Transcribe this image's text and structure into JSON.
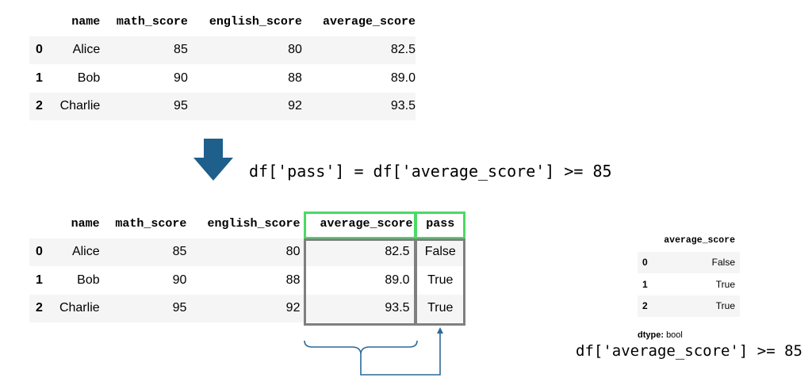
{
  "top_table": {
    "columns": [
      "name",
      "math_score",
      "english_score",
      "average_score"
    ],
    "rows": [
      {
        "index": "0",
        "name": "Alice",
        "math_score": "85",
        "english_score": "80",
        "average_score": "82.5"
      },
      {
        "index": "1",
        "name": "Bob",
        "math_score": "90",
        "english_score": "88",
        "average_score": "89.0"
      },
      {
        "index": "2",
        "name": "Charlie",
        "math_score": "95",
        "english_score": "92",
        "average_score": "93.5"
      }
    ]
  },
  "arrow_code": "df['pass'] = df['average_score'] >= 85",
  "bottom_table": {
    "columns": [
      "name",
      "math_score",
      "english_score",
      "average_score",
      "pass"
    ],
    "rows": [
      {
        "index": "0",
        "name": "Alice",
        "math_score": "85",
        "english_score": "80",
        "average_score": "82.5",
        "pass": "False"
      },
      {
        "index": "1",
        "name": "Bob",
        "math_score": "90",
        "english_score": "88",
        "average_score": "89.0",
        "pass": "True"
      },
      {
        "index": "2",
        "name": "Charlie",
        "math_score": "95",
        "english_score": "92",
        "average_score": "93.5",
        "pass": "True"
      }
    ]
  },
  "series_output": {
    "header": "average_score",
    "rows": [
      {
        "index": "0",
        "value": "False"
      },
      {
        "index": "1",
        "value": "True"
      },
      {
        "index": "2",
        "value": "True"
      }
    ],
    "dtype_label": "dtype:",
    "dtype_value": "bool",
    "code": "df['average_score'] >= 85"
  },
  "colors": {
    "arrow": "#1f5f8b",
    "highlight_green": "#4cd964",
    "box_gray": "#7f7f7f",
    "bracket_blue": "#2a6a9a"
  },
  "icons": [
    "down-arrow-icon",
    "brace-bracket-icon"
  ]
}
